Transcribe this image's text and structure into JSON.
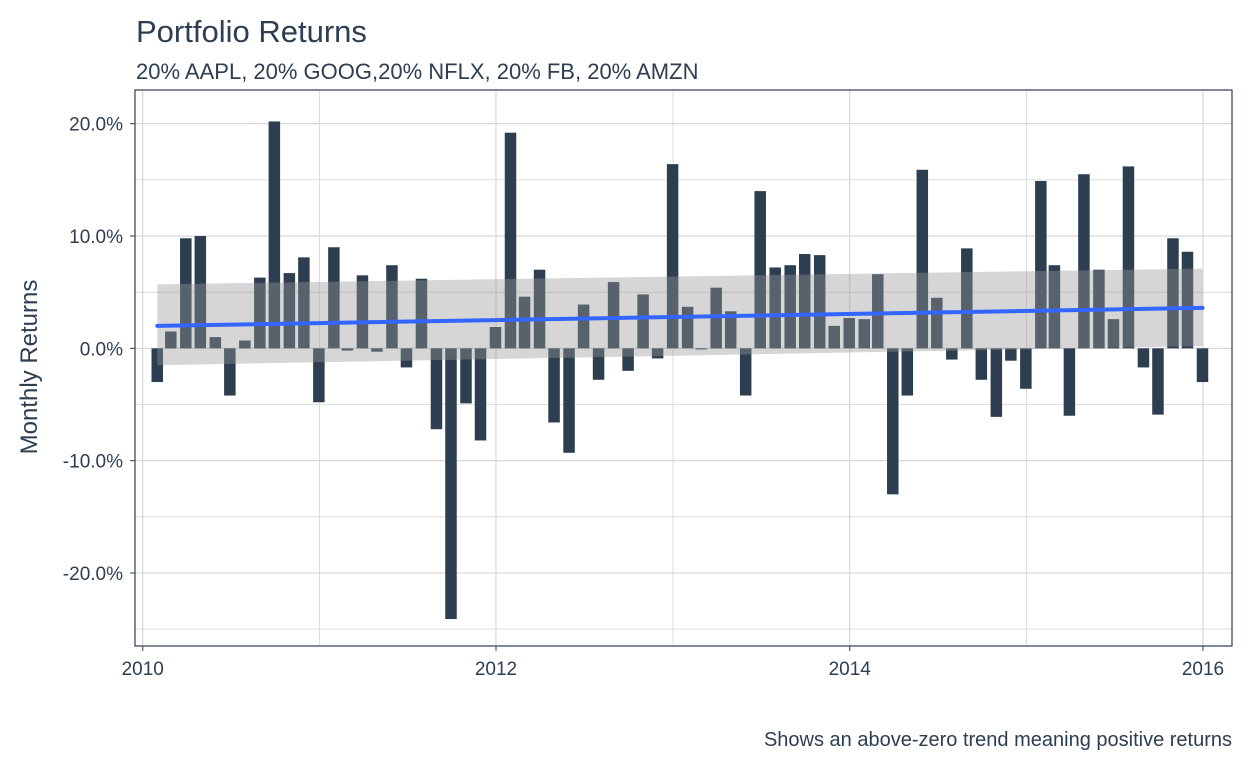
{
  "chart_data": {
    "type": "bar",
    "title": "Portfolio Returns",
    "subtitle": "20% AAPL, 20% GOOG,20% NFLX, 20% FB, 20% AMZN",
    "caption": "Shows an above-zero trend meaning positive returns",
    "xlabel": "",
    "ylabel": "Monthly Returns",
    "x_ticks": [
      "2010",
      "2012",
      "2014",
      "2016"
    ],
    "y_ticks": [
      "-20.0%",
      "-10.0%",
      "0.0%",
      "10.0%",
      "20.0%"
    ],
    "xlim": [
      "2009-12-16",
      "2016-03-01"
    ],
    "ylim": [
      -0.265,
      0.23
    ],
    "grid": true,
    "legend": "none",
    "x": [
      "2010-01-31",
      "2010-02-28",
      "2010-03-31",
      "2010-04-30",
      "2010-05-31",
      "2010-06-30",
      "2010-07-31",
      "2010-08-31",
      "2010-09-30",
      "2010-10-31",
      "2010-11-30",
      "2010-12-31",
      "2011-01-31",
      "2011-02-28",
      "2011-03-31",
      "2011-04-30",
      "2011-05-31",
      "2011-06-30",
      "2011-07-31",
      "2011-08-31",
      "2011-09-30",
      "2011-10-31",
      "2011-11-30",
      "2011-12-31",
      "2012-01-31",
      "2012-02-29",
      "2012-03-31",
      "2012-04-30",
      "2012-05-31",
      "2012-06-30",
      "2012-07-31",
      "2012-08-31",
      "2012-09-30",
      "2012-10-31",
      "2012-11-30",
      "2012-12-31",
      "2013-01-31",
      "2013-02-28",
      "2013-03-31",
      "2013-04-30",
      "2013-05-31",
      "2013-06-30",
      "2013-07-31",
      "2013-08-31",
      "2013-09-30",
      "2013-10-31",
      "2013-11-30",
      "2013-12-31",
      "2014-01-31",
      "2014-02-28",
      "2014-03-31",
      "2014-04-30",
      "2014-05-31",
      "2014-06-30",
      "2014-07-31",
      "2014-08-31",
      "2014-09-30",
      "2014-10-31",
      "2014-11-30",
      "2014-12-31",
      "2015-01-31",
      "2015-02-28",
      "2015-03-31",
      "2015-04-30",
      "2015-05-31",
      "2015-06-30",
      "2015-07-31",
      "2015-08-31",
      "2015-09-30",
      "2015-10-31",
      "2015-11-30",
      "2015-12-31"
    ],
    "values": [
      -0.03,
      0.015,
      0.098,
      0.1,
      0.01,
      -0.042,
      0.007,
      0.063,
      0.202,
      0.067,
      0.081,
      -0.048,
      0.09,
      -0.002,
      0.065,
      -0.003,
      0.074,
      -0.017,
      0.062,
      -0.072,
      -0.241,
      -0.049,
      -0.082,
      0.019,
      0.192,
      0.046,
      0.07,
      -0.066,
      -0.093,
      0.039,
      -0.028,
      0.059,
      -0.02,
      0.048,
      -0.009,
      0.164,
      0.037,
      -0.001,
      0.054,
      0.033,
      -0.042,
      0.14,
      0.072,
      0.074,
      0.084,
      0.083,
      0.02,
      0.027,
      0.026,
      0.066,
      -0.13,
      -0.042,
      0.159,
      0.045,
      -0.01,
      0.089,
      -0.028,
      -0.061,
      -0.011,
      -0.036,
      0.149,
      0.074,
      -0.06,
      0.155,
      0.07,
      0.026,
      0.162,
      -0.017,
      -0.059,
      0.098,
      0.086,
      -0.03
    ],
    "trend": {
      "name": "trend",
      "start": [
        "2010-01-31",
        0.02
      ],
      "end": [
        "2015-12-31",
        0.036
      ],
      "band_lower_start": -0.015,
      "band_upper_start": 0.057,
      "band_lower_end": 0.002,
      "band_upper_end": 0.071
    },
    "colors": {
      "bar": "#2c3e50",
      "trend": "#3366ff",
      "band": "#999999",
      "grid": "#d3d3d3",
      "panel_border": "#2c3e50",
      "text": "#2c3e50"
    }
  }
}
